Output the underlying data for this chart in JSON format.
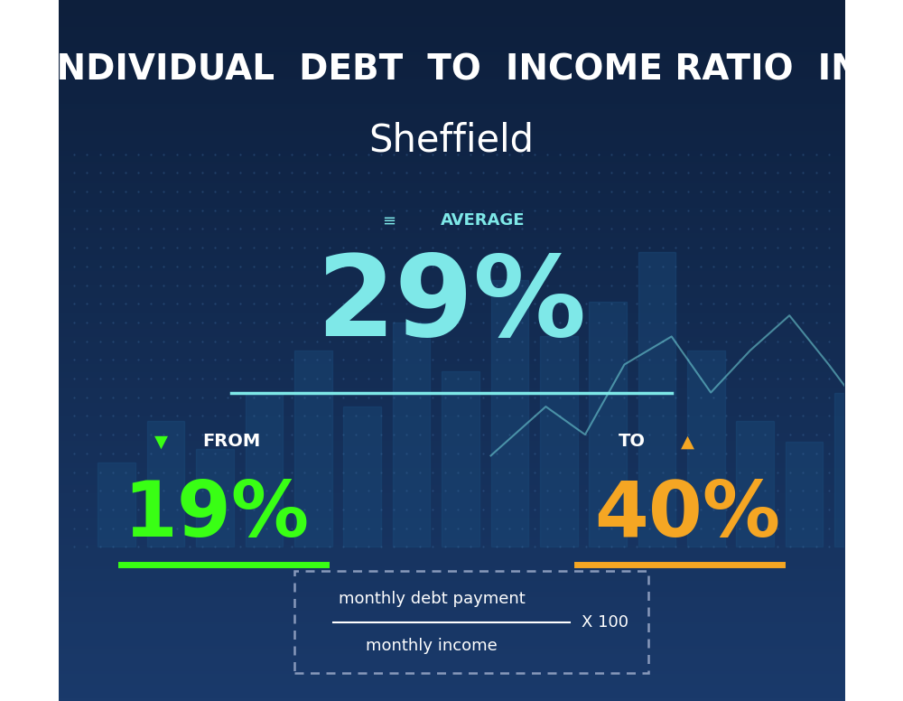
{
  "title_line1": "INDIVIDUAL  DEBT  TO  INCOME RATIO  IN",
  "title_line2": "Sheffield",
  "bg_color_top": "#0d1f3c",
  "bg_color_bottom": "#1a3a6b",
  "average_label": "AVERAGE",
  "average_value": "29%",
  "average_color": "#7ee8e8",
  "average_line_color": "#7ee8e8",
  "from_label": "FROM",
  "from_value": "19%",
  "from_color": "#39ff14",
  "from_line_color": "#39ff14",
  "to_label": "TO",
  "to_value": "40%",
  "to_color": "#f5a623",
  "to_line_color": "#f5a623",
  "formula_top": "monthly debt payment",
  "formula_bottom": "monthly income",
  "formula_multiplier": "X 100",
  "title_color": "#ffffff",
  "label_color": "#ffffff",
  "down_arrow_color": "#39ff14",
  "up_arrow_color": "#f5a623",
  "avg_icon_color": "#7ee8e8",
  "figsize": [
    10.0,
    7.76
  ],
  "dpi": 100
}
